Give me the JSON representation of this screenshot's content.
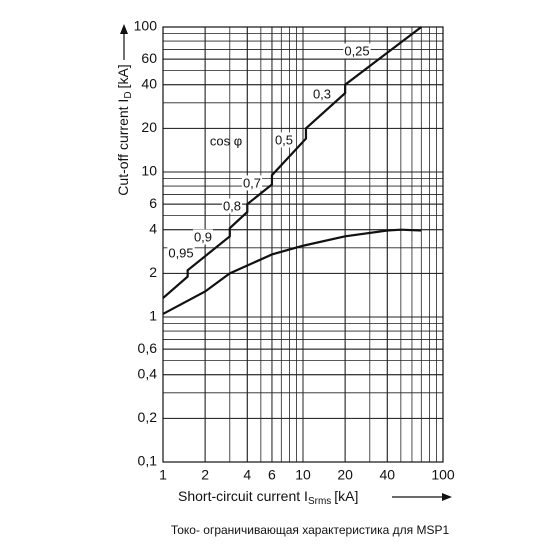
{
  "chart_data": {
    "type": "line",
    "xlabel": "Short-circuit current I",
    "xlabel_sub": "Srms",
    "xlabel_unit": "[kA]",
    "ylabel": "Cut-off current I",
    "ylabel_sub": "D",
    "ylabel_unit": "[kA]",
    "caption": "Токо- ограничивающая характеристика для MSP1",
    "log_x": true,
    "log_y": true,
    "grid": true,
    "xlim": [
      1,
      100
    ],
    "ylim": [
      0.1,
      100
    ],
    "xticks": [
      1,
      2,
      4,
      6,
      10,
      20,
      40,
      100
    ],
    "yticks": [
      {
        "value": 0.1,
        "label": "0,1"
      },
      {
        "value": 0.2,
        "label": "0,2"
      },
      {
        "value": 0.4,
        "label": "0,4"
      },
      {
        "value": 0.6,
        "label": "0,6"
      },
      1,
      2,
      4,
      6,
      10,
      20,
      40,
      60,
      100
    ],
    "series": [
      {
        "color": "#111111",
        "x": [
          1,
          1.5,
          1.5,
          3,
          3,
          4,
          4,
          6,
          6,
          10.5,
          10.5,
          20,
          20,
          70
        ],
        "values": [
          1.35,
          1.9,
          2.1,
          3.6,
          4.1,
          5.3,
          6,
          8.2,
          9.5,
          17,
          20,
          35,
          40,
          100
        ]
      },
      {
        "color": "#111111",
        "x": [
          1,
          2,
          3,
          6,
          10,
          20,
          40,
          50,
          70
        ],
        "values": [
          1.05,
          1.5,
          2.0,
          2.7,
          3.1,
          3.6,
          3.95,
          4,
          3.95
        ]
      }
    ],
    "annotations": [
      "cos φ",
      "0,95",
      "0,9",
      "0,8",
      "0,7",
      "0,5",
      "0,3",
      "0,25"
    ]
  }
}
